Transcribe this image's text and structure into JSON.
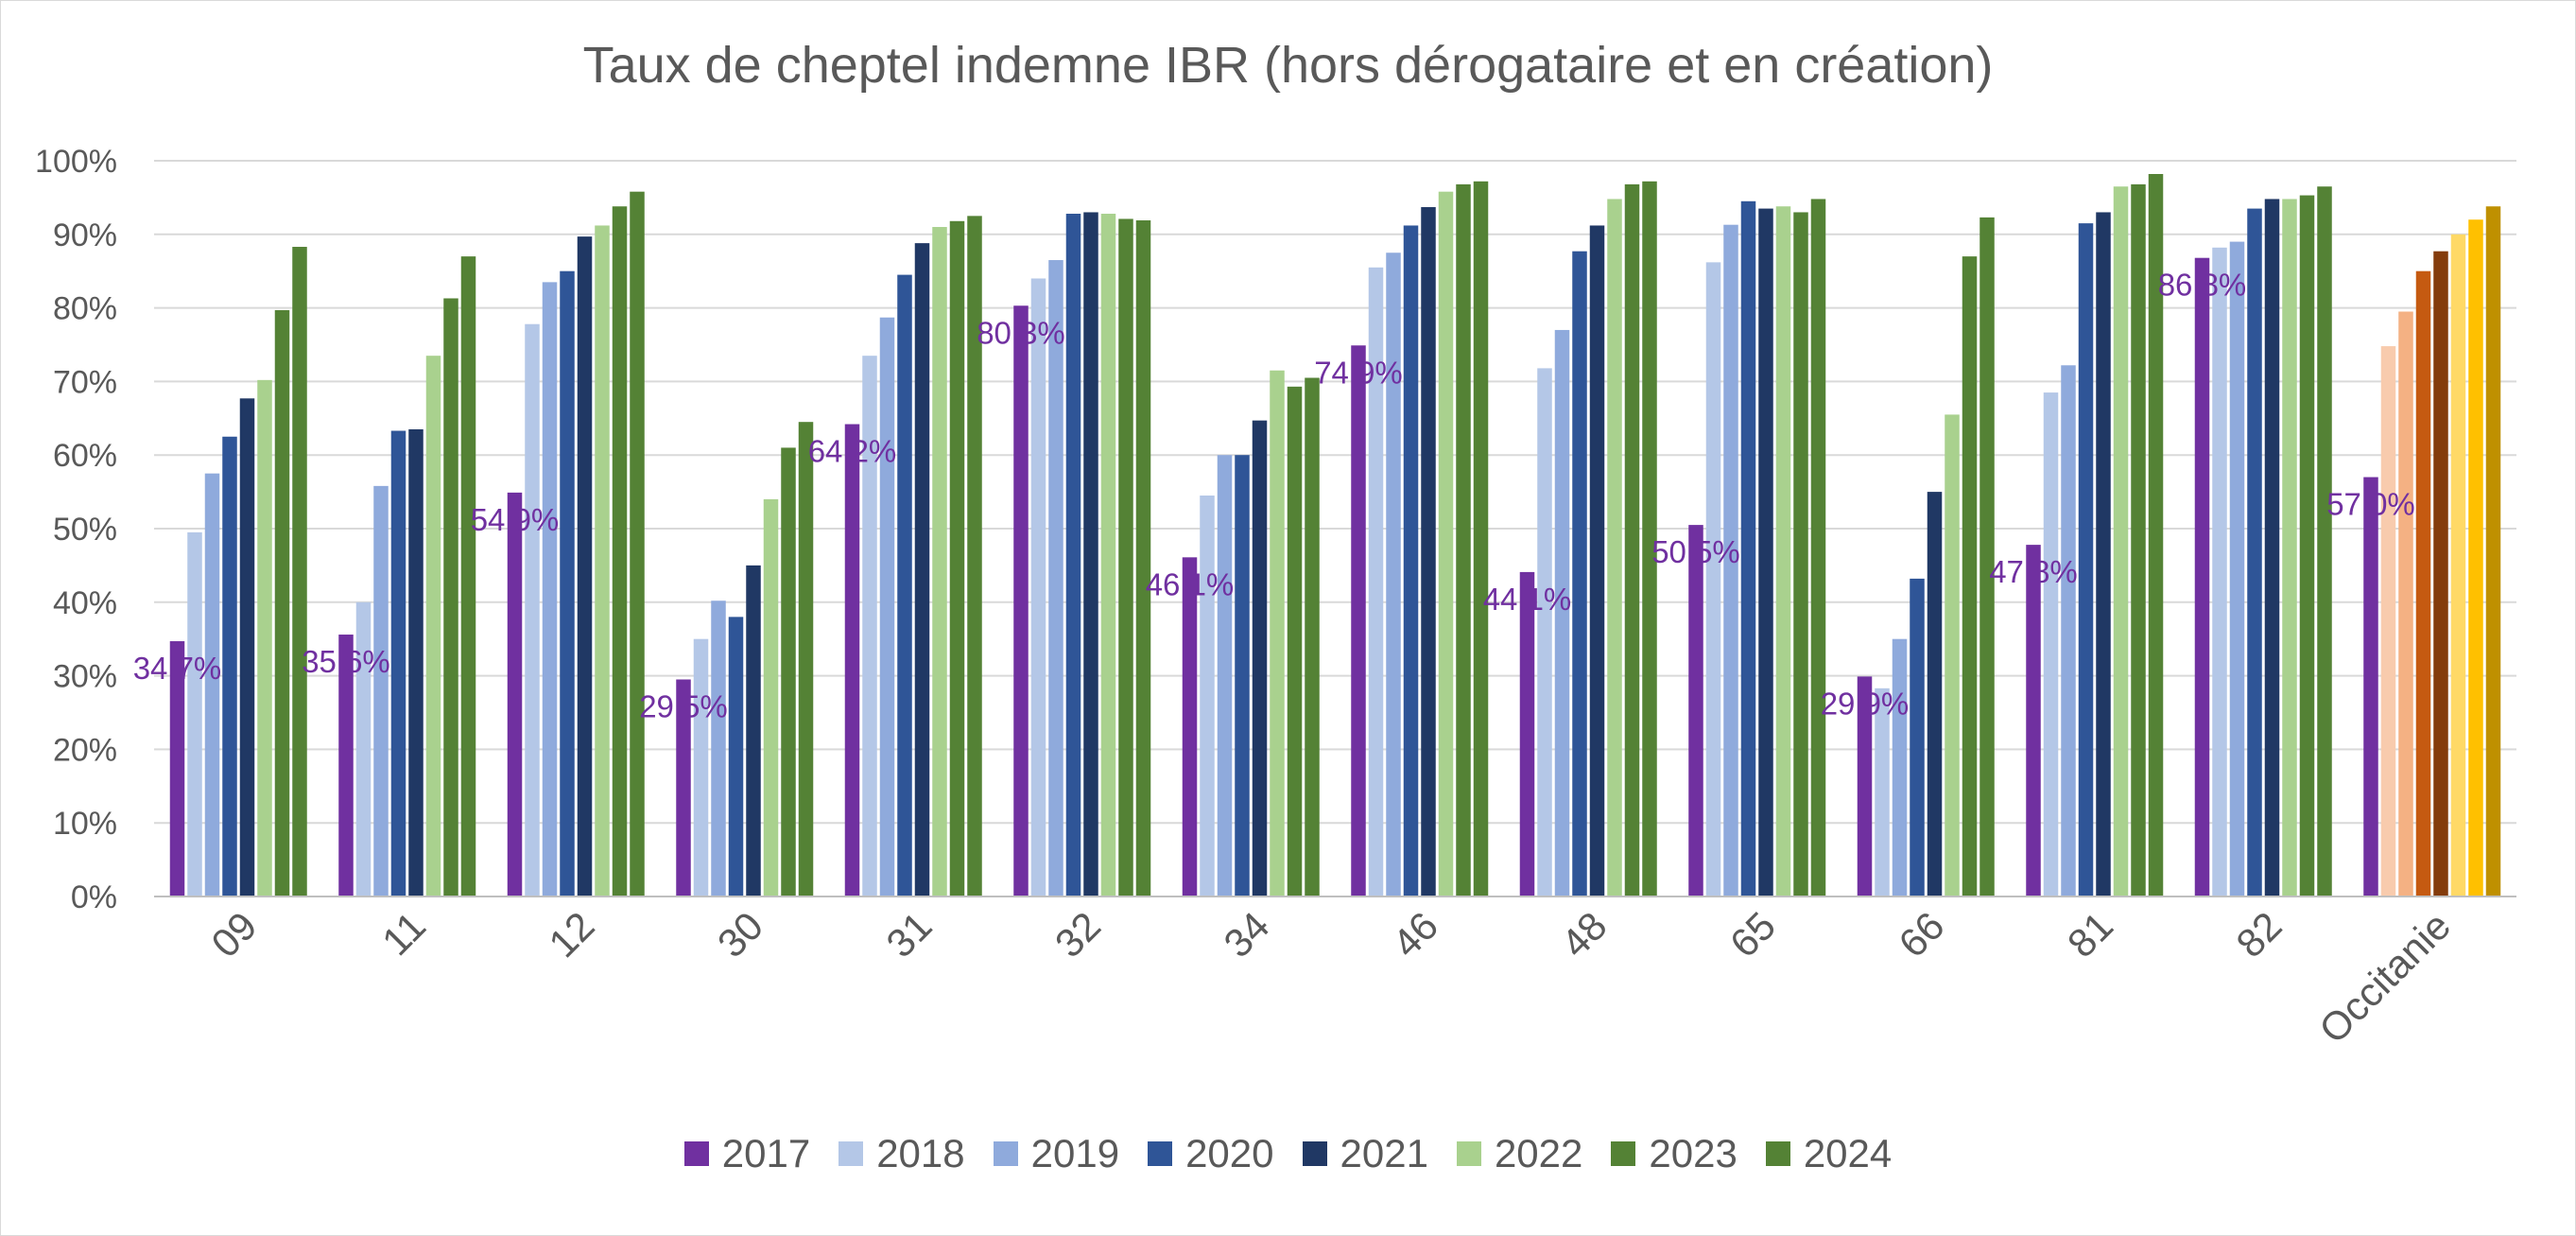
{
  "chart_data": {
    "type": "bar",
    "title": "Taux de cheptel indemne IBR (hors dérogataire et en création)",
    "xlabel": "",
    "ylabel": "",
    "ylim": [
      0,
      100
    ],
    "yticks": [
      "0%",
      "10%",
      "20%",
      "30%",
      "40%",
      "50%",
      "60%",
      "70%",
      "80%",
      "90%",
      "100%"
    ],
    "grid": true,
    "legend_position": "bottom",
    "categories": [
      "09",
      "11",
      "12",
      "30",
      "31",
      "32",
      "34",
      "46",
      "48",
      "65",
      "66",
      "81",
      "82",
      "Occitanie"
    ],
    "series": [
      {
        "name": "2017",
        "color": "#7030a0",
        "values": [
          34.7,
          35.6,
          54.9,
          29.5,
          64.2,
          80.3,
          46.1,
          74.9,
          44.1,
          50.5,
          29.9,
          47.8,
          86.8,
          57.0
        ]
      },
      {
        "name": "2018",
        "color": "#b4c7e7",
        "values": [
          49.5,
          40.0,
          77.8,
          35.0,
          73.5,
          84.0,
          54.5,
          85.5,
          71.8,
          86.2,
          28.3,
          68.5,
          88.2,
          74.8
        ]
      },
      {
        "name": "2019",
        "color": "#8faadc",
        "values": [
          57.5,
          55.8,
          83.5,
          40.2,
          78.7,
          86.5,
          60.0,
          87.5,
          77.0,
          91.3,
          35.0,
          72.2,
          89.0,
          79.5
        ]
      },
      {
        "name": "2020",
        "color": "#2f5597",
        "values": [
          62.5,
          63.3,
          85.0,
          38.0,
          84.5,
          92.8,
          60.0,
          91.2,
          87.7,
          94.5,
          43.2,
          91.5,
          93.5,
          85.0
        ]
      },
      {
        "name": "2021",
        "color": "#203864",
        "values": [
          67.7,
          63.5,
          89.7,
          45.0,
          88.8,
          93.0,
          64.7,
          93.7,
          91.2,
          93.5,
          55.0,
          93.0,
          94.8,
          87.7
        ]
      },
      {
        "name": "2022",
        "color": "#a9d18e",
        "values": [
          70.2,
          73.5,
          91.2,
          54.0,
          91.0,
          92.8,
          71.5,
          95.8,
          94.8,
          93.8,
          65.5,
          96.5,
          94.8,
          90.0
        ]
      },
      {
        "name": "2023",
        "color": "#548235",
        "values": [
          79.7,
          81.3,
          93.8,
          61.0,
          91.8,
          92.1,
          69.3,
          96.8,
          96.8,
          93.0,
          87.0,
          96.8,
          95.3,
          92.0
        ]
      },
      {
        "name": "2024",
        "color": "#548235",
        "values": [
          88.3,
          87.0,
          95.8,
          64.5,
          92.5,
          91.9,
          70.5,
          97.2,
          97.2,
          94.8,
          92.3,
          98.2,
          96.5,
          93.8
        ]
      }
    ],
    "occitanie_colors": [
      "#7030a0",
      "#f8cbad",
      "#f4b183",
      "#c55a11",
      "#843c0c",
      "#ffd966",
      "#ffc000",
      "#bf9000"
    ],
    "data_labels": [
      "34,7%",
      "35,6%",
      "54,9%",
      "29,5%",
      "64,2%",
      "80,3%",
      "46,1%",
      "74,9%",
      "44,1%",
      "50,5%",
      "29,9%",
      "47,8%",
      "86,8%",
      "57,0%"
    ],
    "data_label_color": "#7030a0",
    "grid_color": "#d9d9d9",
    "axis_color": "#bfbfbf"
  }
}
